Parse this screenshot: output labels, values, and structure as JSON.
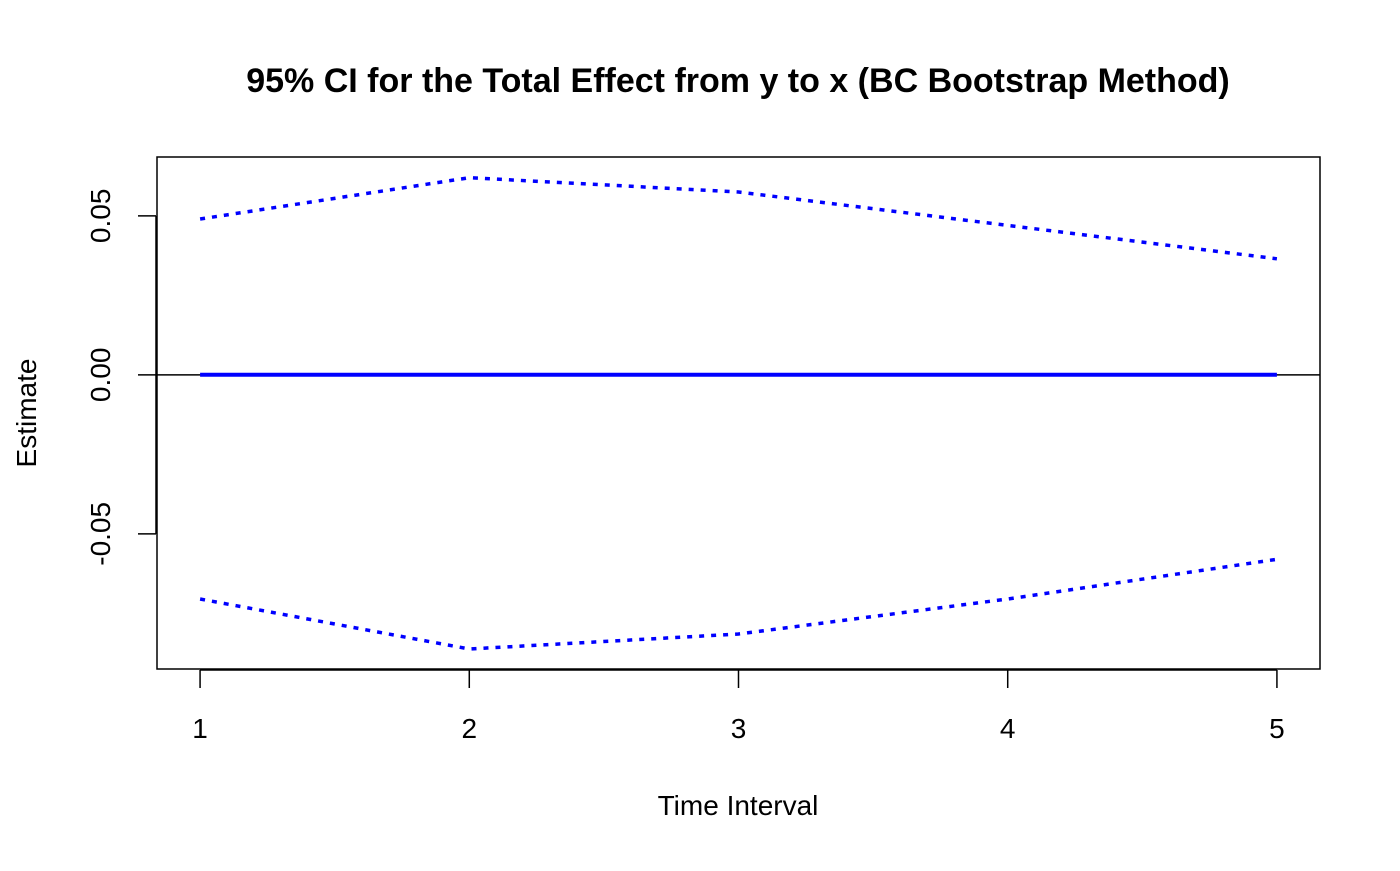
{
  "chart_data": {
    "type": "line",
    "title": "95% CI for the Total Effect from y to x (BC Bootstrap Method)",
    "xlabel": "Time Interval",
    "ylabel": "Estimate",
    "x": [
      1,
      2,
      3,
      4,
      5
    ],
    "xlim": [
      0.84,
      5.16
    ],
    "ylim": [
      -0.0925,
      0.0685
    ],
    "x_ticks": [
      1,
      2,
      3,
      4,
      5
    ],
    "x_tick_labels": [
      "1",
      "2",
      "3",
      "4",
      "5"
    ],
    "y_ticks": [
      0.05,
      0.0,
      -0.05
    ],
    "y_tick_labels": [
      "0.05",
      "0.00",
      "-0.05"
    ],
    "reference_line": {
      "y": 0,
      "color": "#000000"
    },
    "grid": false,
    "series": [
      {
        "role": "estimate",
        "style": "solid",
        "color": "#0000ff",
        "values": [
          0,
          0,
          0,
          0,
          0
        ]
      },
      {
        "role": "upper",
        "style": "dotted",
        "color": "#0000ff",
        "values": [
          0.049,
          0.062,
          0.0575,
          0.047,
          0.0365
        ]
      },
      {
        "role": "lower",
        "style": "dotted",
        "color": "#0000ff",
        "values": [
          -0.0705,
          -0.0862,
          -0.0815,
          -0.0705,
          -0.058
        ]
      }
    ]
  }
}
